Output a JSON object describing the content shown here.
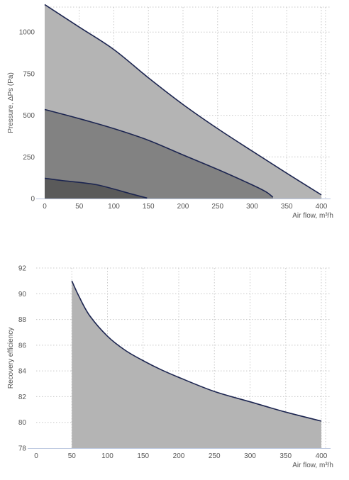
{
  "chart_data": [
    {
      "type": "area",
      "ylabel": "Pressure, ΔPs (Pa)",
      "xlabel": "Air flow, m³/h",
      "xlim": [
        0,
        400
      ],
      "ylim": [
        0,
        1150
      ],
      "x_ticks": [
        "0",
        "50",
        "100",
        "150",
        "200",
        "250",
        "300",
        "350",
        "400"
      ],
      "y_ticks": [
        "0",
        "250",
        "500",
        "750",
        "1000"
      ],
      "grid": true,
      "series": [
        {
          "fill": "#b4b4b4",
          "line": "#1c2550",
          "points": [
            [
              0,
              1165
            ],
            [
              50,
              1030
            ],
            [
              100,
              895
            ],
            [
              150,
              725
            ],
            [
              200,
              565
            ],
            [
              250,
              420
            ],
            [
              300,
              285
            ],
            [
              350,
              152
            ],
            [
              400,
              22
            ]
          ]
        },
        {
          "fill": "#828282",
          "line": "#1c2550",
          "points": [
            [
              0,
              535
            ],
            [
              50,
              480
            ],
            [
              100,
              420
            ],
            [
              150,
              350
            ],
            [
              200,
              262
            ],
            [
              250,
              175
            ],
            [
              300,
              82
            ],
            [
              320,
              40
            ],
            [
              330,
              8
            ]
          ]
        },
        {
          "fill": "#5a5a5a",
          "line": "#1c2550",
          "points": [
            [
              0,
              122
            ],
            [
              25,
              108
            ],
            [
              50,
              97
            ],
            [
              75,
              83
            ],
            [
              100,
              57
            ],
            [
              125,
              28
            ],
            [
              148,
              3
            ]
          ]
        }
      ]
    },
    {
      "type": "area",
      "ylabel": "Recovery efficiency",
      "xlabel": "Air flow, m³/h",
      "xlim": [
        0,
        400
      ],
      "ylim": [
        78,
        92
      ],
      "x_ticks": [
        "0",
        "50",
        "100",
        "150",
        "200",
        "250",
        "300",
        "350",
        "400"
      ],
      "y_ticks": [
        "78",
        "80",
        "82",
        "84",
        "86",
        "88",
        "90",
        "92"
      ],
      "grid": true,
      "series": [
        {
          "fill": "#b4b4b4",
          "line": "#1c2550",
          "points": [
            [
              50,
              91.0
            ],
            [
              60,
              89.8
            ],
            [
              75,
              88.3
            ],
            [
              100,
              86.7
            ],
            [
              125,
              85.6
            ],
            [
              150,
              84.8
            ],
            [
              175,
              84.1
            ],
            [
              200,
              83.5
            ],
            [
              250,
              82.4
            ],
            [
              300,
              81.6
            ],
            [
              350,
              80.8
            ],
            [
              400,
              80.1
            ]
          ]
        }
      ]
    }
  ]
}
